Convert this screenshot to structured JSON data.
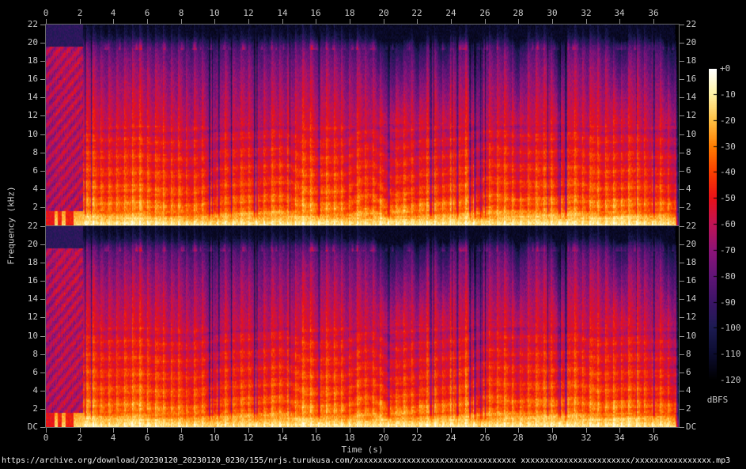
{
  "figure": {
    "background": "#000000",
    "source_text": "https://archive.org/download/20230120_20230120_0230/155/nrjs.turukusa.com/xxxxxxxxxxxxxxxxxxxxxxxxxxxxxxxxxx xxxxxxxxxxxxxxxxxxxxxxx/xxxxxxxxxxxxxxxx.mp3",
    "label_color": "#c8c8c8",
    "tick_color": "#8f8f8f",
    "border_color": "#6a6a6a"
  },
  "chart_data": {
    "type": "heatmap",
    "subtype": "audio-spectrogram",
    "channels": [
      "channel-1",
      "channel-2"
    ],
    "title": "",
    "x": {
      "label": "Time (s)",
      "min": 0,
      "max": 37.5,
      "ticks": [
        0,
        2,
        4,
        6,
        8,
        10,
        12,
        14,
        16,
        18,
        20,
        22,
        24,
        26,
        28,
        30,
        32,
        34,
        36
      ]
    },
    "y": {
      "label": "Frequency (kHz)",
      "min": 0,
      "max": 22,
      "tick_labels": [
        "22",
        "20",
        "18",
        "16",
        "14",
        "12",
        "10",
        "8",
        "6",
        "4",
        "2"
      ],
      "dc_label": "DC"
    },
    "z": {
      "label": "dBFS",
      "min": -120,
      "max": 0,
      "tick_labels": [
        "+0",
        "-10",
        "-20",
        "-30",
        "-40",
        "-50",
        "-60",
        "-70",
        "-80",
        "-90",
        "-100",
        "-110",
        "-120"
      ]
    },
    "palette_stops": [
      [
        0.0,
        "#000000"
      ],
      [
        0.085,
        "#0c0c30"
      ],
      [
        0.17,
        "#1c1b52"
      ],
      [
        0.25,
        "#3b1466"
      ],
      [
        0.335,
        "#611477"
      ],
      [
        0.415,
        "#8c1378"
      ],
      [
        0.5,
        "#c01356"
      ],
      [
        0.585,
        "#e81118"
      ],
      [
        0.665,
        "#f93c00"
      ],
      [
        0.75,
        "#ff7c00"
      ],
      [
        0.835,
        "#ffc043"
      ],
      [
        0.92,
        "#fff3a6"
      ],
      [
        1.0,
        "#ffffff"
      ]
    ],
    "spectral_profile_db": {
      "freq_khz": [
        0,
        0.25,
        0.6,
        1.2,
        2,
        3.5,
        5,
        7,
        9,
        11,
        13,
        15,
        16.5,
        18,
        19.2,
        19.8,
        20.4,
        21,
        22
      ],
      "level_db": [
        -11,
        -13,
        -19,
        -27,
        -33,
        -39,
        -43,
        -47,
        -51,
        -55,
        -59,
        -64,
        -68,
        -74,
        -80,
        -88,
        -100,
        -108,
        -115
      ]
    },
    "intro_end_s": 2.2,
    "end_fade_s": 37.25,
    "beat_period_s": 0.46,
    "hf_quiet_intervals_s": [
      [
        19.7,
        21.3
      ],
      [
        21.9,
        22.4
      ],
      [
        23.3,
        23.8
      ],
      [
        25.2,
        25.5
      ],
      [
        27.7,
        28.2
      ],
      [
        30.1,
        30.6
      ],
      [
        33.6,
        34.3
      ],
      [
        36.6,
        37.2
      ]
    ],
    "description": "Dual-channel (stereo) spectrogram of dense music: bright bass floor near 0 dBFS region colors (yellow/white), red mids, magenta/purple highs, ~20 kHz lowpass shelf, short quiet breaks, quiet intro before 2.2 s, fade at file end."
  }
}
